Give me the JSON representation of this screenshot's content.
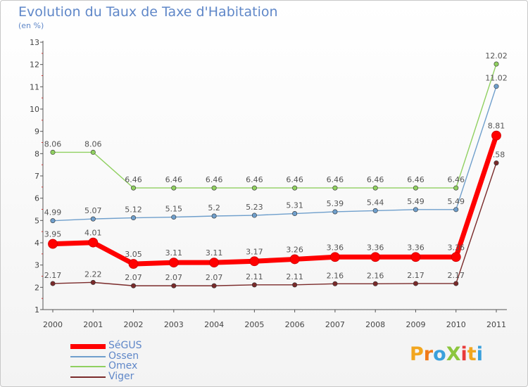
{
  "title": "Evolution du Taux de Taxe d'Habitation",
  "subtitle": "(en %)",
  "logo": {
    "text": "ProXiti",
    "letter_colors": [
      "#f2a61f",
      "#f07a1a",
      "#3aa0dc",
      "#8cc63e",
      "#e83a3a",
      "#f2a61f",
      "#3aa0dc"
    ]
  },
  "chart_data": {
    "type": "line",
    "x": [
      "2000",
      "2001",
      "2002",
      "2003",
      "2004",
      "2005",
      "2006",
      "2007",
      "2008",
      "2009",
      "2010",
      "2011"
    ],
    "y_ticks": [
      "1",
      "2",
      "3",
      "4",
      "5",
      "6",
      "7",
      "8",
      "9",
      "10",
      "11",
      "12",
      "13"
    ],
    "ylim": [
      1,
      13
    ],
    "grid": false,
    "legend_position": "bottom-left",
    "series": [
      {
        "name": "Omex",
        "color": "#90d060",
        "values": [
          8.06,
          8.06,
          6.46,
          6.46,
          6.46,
          6.46,
          6.46,
          6.46,
          6.46,
          6.46,
          6.46,
          12.02
        ],
        "labels": [
          "8.06",
          "8.06",
          "6.46",
          "6.46",
          "6.46",
          "6.46",
          "6.46",
          "6.46",
          "6.46",
          "6.46",
          "6.46",
          "12.02"
        ]
      },
      {
        "name": "Ossen",
        "color": "#6f9fcc",
        "values": [
          4.99,
          5.07,
          5.12,
          5.15,
          5.2,
          5.23,
          5.31,
          5.39,
          5.44,
          5.49,
          5.49,
          11.02
        ],
        "labels": [
          "4.99",
          "5.07",
          "5.12",
          "5.15",
          "5.2",
          "5.23",
          "5.31",
          "5.39",
          "5.44",
          "5.49",
          "5.49",
          "11.02"
        ]
      },
      {
        "name": "Viger",
        "color": "#7a2a2a",
        "values": [
          2.17,
          2.22,
          2.07,
          2.07,
          2.07,
          2.11,
          2.11,
          2.16,
          2.16,
          2.17,
          2.17,
          7.58
        ],
        "labels": [
          "2.17",
          "2.22",
          "2.07",
          "2.07",
          "2.07",
          "2.11",
          "2.11",
          "2.16",
          "2.16",
          "2.17",
          "2.17",
          "7.58"
        ]
      },
      {
        "name": "SéGUS",
        "color": "#ff0000",
        "values": [
          3.95,
          4.01,
          3.05,
          3.11,
          3.11,
          3.17,
          3.26,
          3.36,
          3.36,
          3.36,
          3.36,
          8.81
        ],
        "labels": [
          "3.95",
          "4.01",
          "3.05",
          "3.11",
          "3.11",
          "3.17",
          "3.26",
          "3.36",
          "3.36",
          "3.36",
          "3.36",
          "8.81"
        ]
      }
    ],
    "legend": [
      {
        "name": "SéGUS",
        "color": "#ff0000"
      },
      {
        "name": "Ossen",
        "color": "#6f9fcc"
      },
      {
        "name": "Omex",
        "color": "#90d060"
      },
      {
        "name": "Viger",
        "color": "#7a2a2a"
      }
    ]
  }
}
